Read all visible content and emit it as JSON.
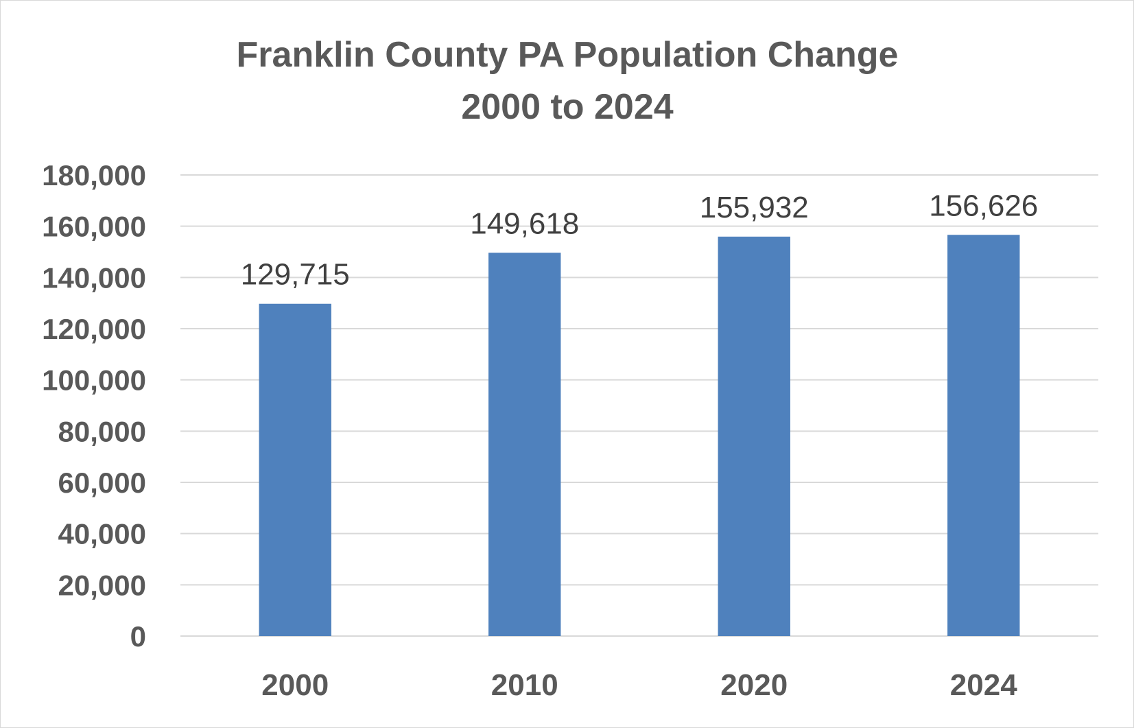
{
  "chart_data": {
    "type": "bar",
    "title_line1": "Franklin County PA Population Change",
    "title_line2": "2000 to 2024",
    "categories": [
      "2000",
      "2010",
      "2020",
      "2024"
    ],
    "values": [
      129715,
      149618,
      155932,
      156626
    ],
    "data_labels": [
      "129,715",
      "149,618",
      "155,932",
      "156,626"
    ],
    "yticks": [
      "0",
      "20,000",
      "40,000",
      "60,000",
      "80,000",
      "100,000",
      "120,000",
      "140,000",
      "160,000",
      "180,000"
    ],
    "ylim": [
      0,
      180000
    ],
    "grid": true,
    "bar_color": "#4f81bd"
  }
}
